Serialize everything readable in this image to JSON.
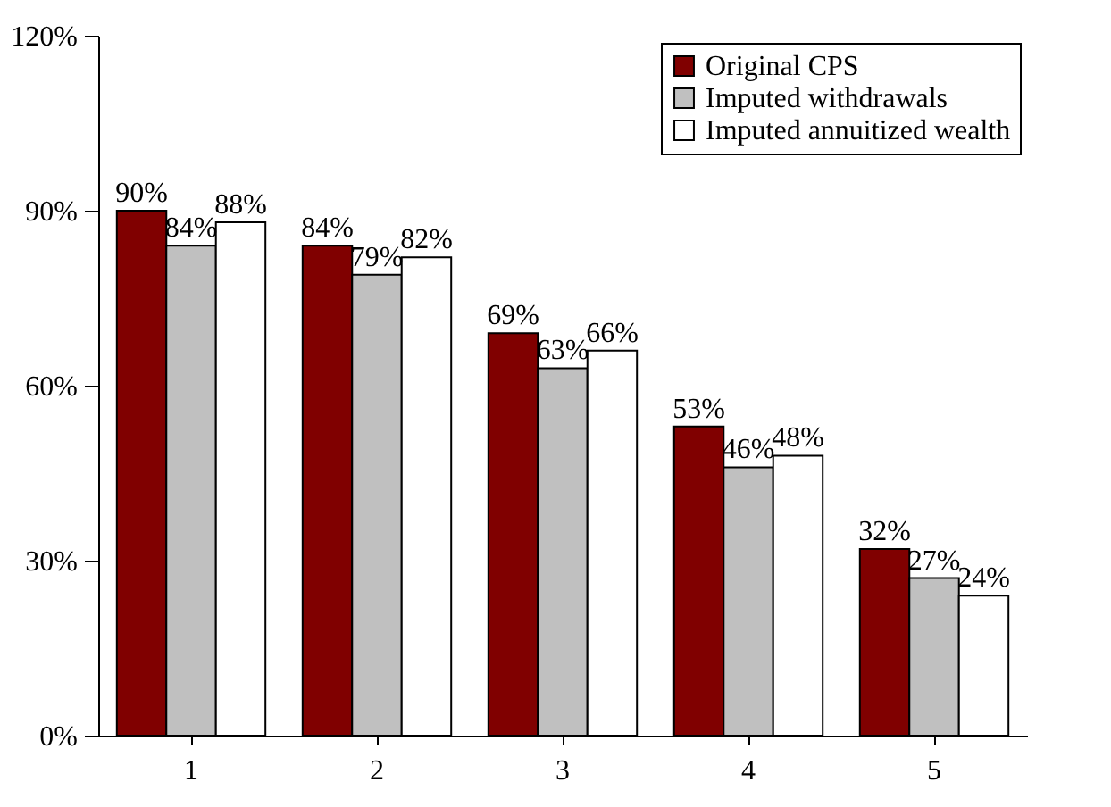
{
  "chart_data": {
    "type": "bar",
    "categories": [
      "1",
      "2",
      "3",
      "4",
      "5"
    ],
    "series": [
      {
        "name": "Original CPS",
        "color": "#800000",
        "values": [
          90,
          84,
          69,
          53,
          32
        ],
        "value_labels": [
          "90%",
          "84%",
          "69%",
          "53%",
          "32%"
        ]
      },
      {
        "name": "Imputed withdrawals",
        "color": "#c0c0c0",
        "values": [
          84,
          79,
          63,
          46,
          27
        ],
        "value_labels": [
          "84%",
          "79%",
          "63%",
          "46%",
          "27%"
        ]
      },
      {
        "name": "Imputed annuitized wealth",
        "color": "#ffffff",
        "values": [
          88,
          82,
          66,
          48,
          24
        ],
        "value_labels": [
          "88%",
          "82%",
          "66%",
          "48%",
          "24%"
        ]
      }
    ],
    "ylim": [
      0,
      120
    ],
    "yticks": [
      {
        "value": 0,
        "label": "0%"
      },
      {
        "value": 30,
        "label": "30%"
      },
      {
        "value": 60,
        "label": "60%"
      },
      {
        "value": 90,
        "label": "90%"
      },
      {
        "value": 120,
        "label": "120%"
      }
    ],
    "grid": false,
    "legend": "top right"
  }
}
